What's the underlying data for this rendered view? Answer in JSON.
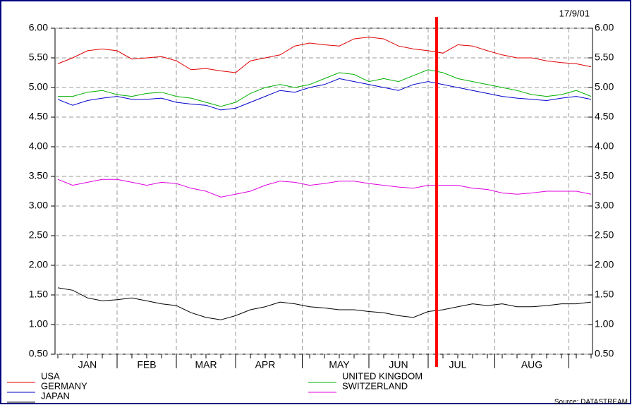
{
  "chart_data": {
    "type": "line",
    "date": "17/9/01",
    "source": "Source: DATASTREAM",
    "categories": [
      null,
      null,
      "JAN",
      null,
      null,
      null,
      "FEB",
      null,
      null,
      null,
      "MAR",
      null,
      null,
      null,
      "APR",
      null,
      null,
      null,
      null,
      "MAY",
      null,
      null,
      null,
      "JUN",
      null,
      null,
      null,
      "JUL",
      null,
      null,
      null,
      null,
      "AUG",
      null,
      null,
      null,
      null
    ],
    "series": [
      {
        "name": "USA",
        "color": "#e00000",
        "values": [
          5.4,
          5.5,
          5.62,
          5.65,
          5.62,
          5.48,
          5.5,
          5.52,
          5.45,
          5.3,
          5.32,
          5.28,
          5.25,
          5.45,
          5.5,
          5.55,
          5.7,
          5.75,
          5.72,
          5.7,
          5.82,
          5.85,
          5.82,
          5.7,
          5.65,
          5.62,
          5.58,
          5.72,
          5.7,
          5.62,
          5.55,
          5.5,
          5.5,
          5.45,
          5.42,
          5.4,
          5.35
        ]
      },
      {
        "name": "GERMANY",
        "color": "#0000cc",
        "values": [
          4.8,
          4.7,
          4.78,
          4.82,
          4.85,
          4.8,
          4.8,
          4.82,
          4.75,
          4.72,
          4.7,
          4.62,
          4.65,
          4.75,
          4.85,
          4.95,
          4.92,
          5.0,
          5.05,
          5.15,
          5.1,
          5.05,
          5.0,
          4.95,
          5.05,
          5.1,
          5.05,
          5.0,
          4.95,
          4.9,
          4.85,
          4.82,
          4.8,
          4.78,
          4.82,
          4.85,
          4.8
        ]
      },
      {
        "name": "JAPAN",
        "color": "#000000",
        "values": [
          1.62,
          1.58,
          1.45,
          1.4,
          1.42,
          1.45,
          1.4,
          1.35,
          1.32,
          1.2,
          1.12,
          1.08,
          1.15,
          1.25,
          1.3,
          1.38,
          1.35,
          1.3,
          1.28,
          1.25,
          1.25,
          1.22,
          1.2,
          1.15,
          1.12,
          1.22,
          1.25,
          1.3,
          1.35,
          1.32,
          1.35,
          1.3,
          1.3,
          1.32,
          1.35,
          1.35,
          1.38
        ]
      },
      {
        "name": "UNITED KINGDOM",
        "color": "#00b000",
        "values": [
          4.85,
          4.85,
          4.92,
          4.95,
          4.88,
          4.85,
          4.9,
          4.92,
          4.85,
          4.82,
          4.75,
          4.68,
          4.75,
          4.9,
          5.0,
          5.05,
          5.0,
          5.05,
          5.15,
          5.25,
          5.22,
          5.1,
          5.15,
          5.1,
          5.2,
          5.3,
          5.25,
          5.15,
          5.1,
          5.05,
          5.0,
          4.95,
          4.88,
          4.85,
          4.88,
          4.95,
          4.85
        ]
      },
      {
        "name": "SWITZERLAND",
        "color": "#e000e0",
        "values": [
          3.45,
          3.35,
          3.4,
          3.45,
          3.45,
          3.4,
          3.35,
          3.4,
          3.38,
          3.3,
          3.25,
          3.15,
          3.2,
          3.25,
          3.35,
          3.42,
          3.4,
          3.35,
          3.38,
          3.42,
          3.42,
          3.38,
          3.35,
          3.32,
          3.3,
          3.35,
          3.35,
          3.35,
          3.3,
          3.28,
          3.22,
          3.2,
          3.22,
          3.25,
          3.25,
          3.25,
          3.2
        ]
      }
    ],
    "ylim": [
      0.5,
      6.0
    ],
    "yticks": [
      {
        "value": 0.5,
        "label": "0.50"
      },
      {
        "value": 1.0,
        "label": "1.00"
      },
      {
        "value": 1.5,
        "label": "1.50"
      },
      {
        "value": 2.0,
        "label": "2.00"
      },
      {
        "value": 2.5,
        "label": "2.50"
      },
      {
        "value": 3.0,
        "label": "3.00"
      },
      {
        "value": 3.5,
        "label": "3.50"
      },
      {
        "value": 4.0,
        "label": "4.00"
      },
      {
        "value": 4.5,
        "label": "4.50"
      },
      {
        "value": 5.0,
        "label": "5.00"
      },
      {
        "value": 5.5,
        "label": "5.50"
      },
      {
        "value": 6.0,
        "label": "6.00"
      }
    ],
    "y2lim": [
      0.5,
      6.0
    ],
    "y2ticks": [
      {
        "value": 0.5,
        "label": "0.50"
      },
      {
        "value": 1.0,
        "label": "1.00"
      },
      {
        "value": 1.5,
        "label": "1.50"
      },
      {
        "value": 2.0,
        "label": "2.00"
      },
      {
        "value": 2.5,
        "label": "2.50"
      },
      {
        "value": 3.0,
        "label": "3.00"
      },
      {
        "value": 3.5,
        "label": "3.50"
      },
      {
        "value": 4.0,
        "label": "4.00"
      },
      {
        "value": 4.5,
        "label": "4.50"
      },
      {
        "value": 5.0,
        "label": "5.00"
      },
      {
        "value": 5.5,
        "label": "5.50"
      },
      {
        "value": 6.0,
        "label": "6.00"
      }
    ],
    "grid": true
  }
}
